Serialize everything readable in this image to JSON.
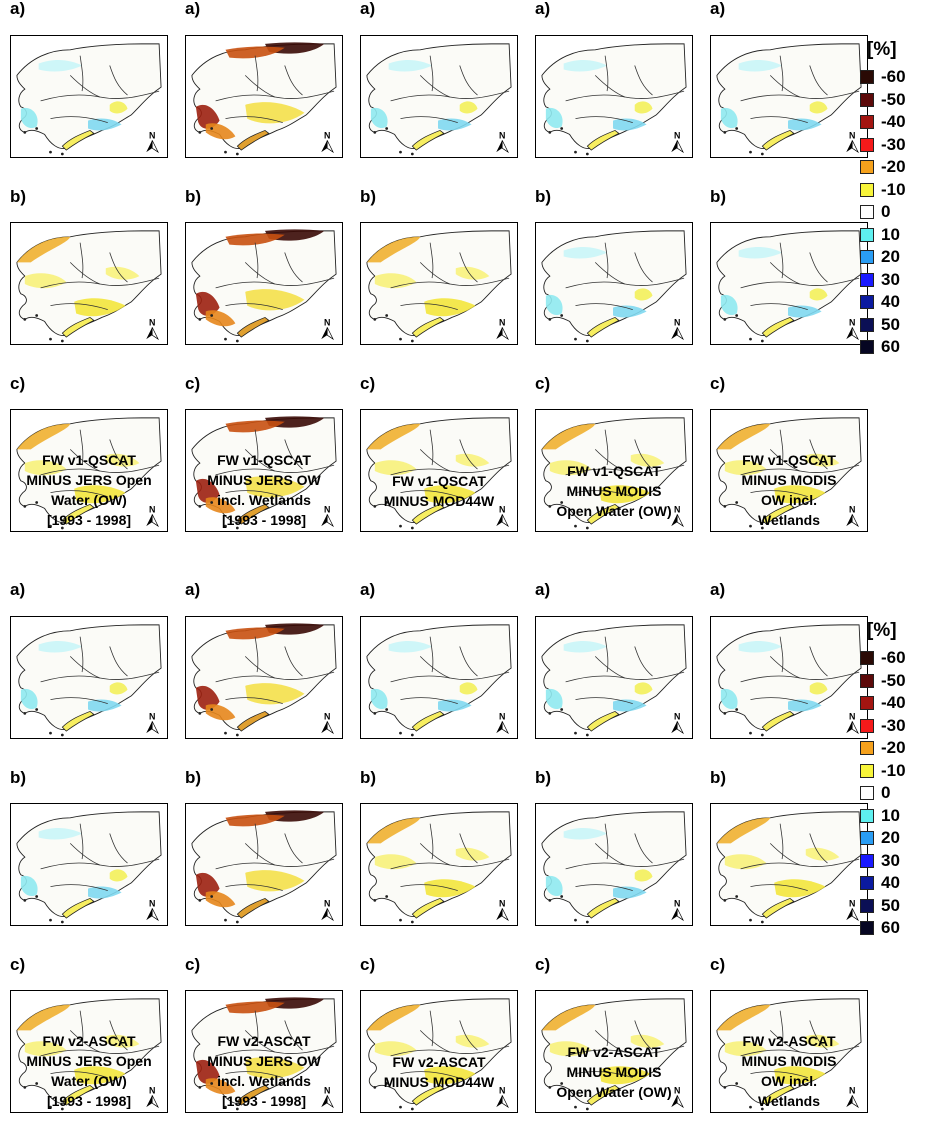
{
  "legend": {
    "title": "[%]",
    "items": [
      {
        "label": "-60",
        "color": "#2a0a05"
      },
      {
        "label": "-50",
        "color": "#5c0a0a"
      },
      {
        "label": "-40",
        "color": "#a31511"
      },
      {
        "label": "-30",
        "color": "#f51a1a"
      },
      {
        "label": "-20",
        "color": "#f5a11c"
      },
      {
        "label": "-10",
        "color": "#f8f53a"
      },
      {
        "label": "0",
        "color": "#ffffff"
      },
      {
        "label": "10",
        "color": "#5ef0f0"
      },
      {
        "label": "20",
        "color": "#2a9df4"
      },
      {
        "label": "30",
        "color": "#1a1aff"
      },
      {
        "label": "40",
        "color": "#0b1aa0"
      },
      {
        "label": "50",
        "color": "#0b0f55"
      },
      {
        "label": "60",
        "color": "#060622"
      }
    ]
  },
  "row_labels": [
    "a)",
    "b)",
    "c)"
  ],
  "north_label": "N",
  "blocks": [
    {
      "id": "v1",
      "columns": [
        {
          "caption": [
            "FW v1-QSCAT",
            "MINUS JERS Open",
            "Water (OW)",
            "[1993 - 1998]"
          ],
          "maps": [
            {
              "tone": "cyan"
            },
            {
              "tone": "yellow"
            },
            {
              "tone": "yellow"
            }
          ]
        },
        {
          "caption": [
            "FW v1-QSCAT",
            "MINUS JERS OW",
            "incl. Wetlands",
            "[1993 - 1998]"
          ],
          "maps": [
            {
              "tone": "red"
            },
            {
              "tone": "red"
            },
            {
              "tone": "red"
            }
          ]
        },
        {
          "caption": [
            "FW v1-QSCAT",
            "MINUS MOD44W"
          ],
          "maps": [
            {
              "tone": "cyan"
            },
            {
              "tone": "yellow"
            },
            {
              "tone": "yellow"
            }
          ]
        },
        {
          "caption": [
            "FW v1-QSCAT",
            "MINUS MODIS",
            "Open Water (OW)"
          ],
          "maps": [
            {
              "tone": "cyan"
            },
            {
              "tone": "cyan"
            },
            {
              "tone": "yellow"
            }
          ]
        },
        {
          "caption": [
            "FW v1-QSCAT",
            "MINUS MODIS",
            "OW incl.",
            "Wetlands"
          ],
          "maps": [
            {
              "tone": "cyan"
            },
            {
              "tone": "cyan"
            },
            {
              "tone": "yellow"
            }
          ]
        }
      ]
    },
    {
      "id": "v2",
      "columns": [
        {
          "caption": [
            "FW v2-ASCAT",
            "MINUS JERS Open",
            "Water (OW)",
            "[1993 - 1998]"
          ],
          "maps": [
            {
              "tone": "cyan"
            },
            {
              "tone": "cyan"
            },
            {
              "tone": "yellow"
            }
          ]
        },
        {
          "caption": [
            "FW v2-ASCAT",
            "MINUS JERS OW",
            "incl. Wetlands",
            "[1993 - 1998]"
          ],
          "maps": [
            {
              "tone": "red"
            },
            {
              "tone": "red"
            },
            {
              "tone": "red"
            }
          ]
        },
        {
          "caption": [
            "FW v2-ASCAT",
            "MINUS MOD44W"
          ],
          "maps": [
            {
              "tone": "cyan"
            },
            {
              "tone": "yellow"
            },
            {
              "tone": "yellow"
            }
          ]
        },
        {
          "caption": [
            "FW v2-ASCAT",
            "MINUS MODIS",
            "Open Water (OW)"
          ],
          "maps": [
            {
              "tone": "cyan"
            },
            {
              "tone": "cyan"
            },
            {
              "tone": "yellow"
            }
          ]
        },
        {
          "caption": [
            "FW v2-ASCAT",
            "MINUS MODIS",
            "OW incl.",
            "Wetlands"
          ],
          "maps": [
            {
              "tone": "cyan"
            },
            {
              "tone": "yellow"
            },
            {
              "tone": "yellow"
            }
          ]
        }
      ]
    }
  ]
}
